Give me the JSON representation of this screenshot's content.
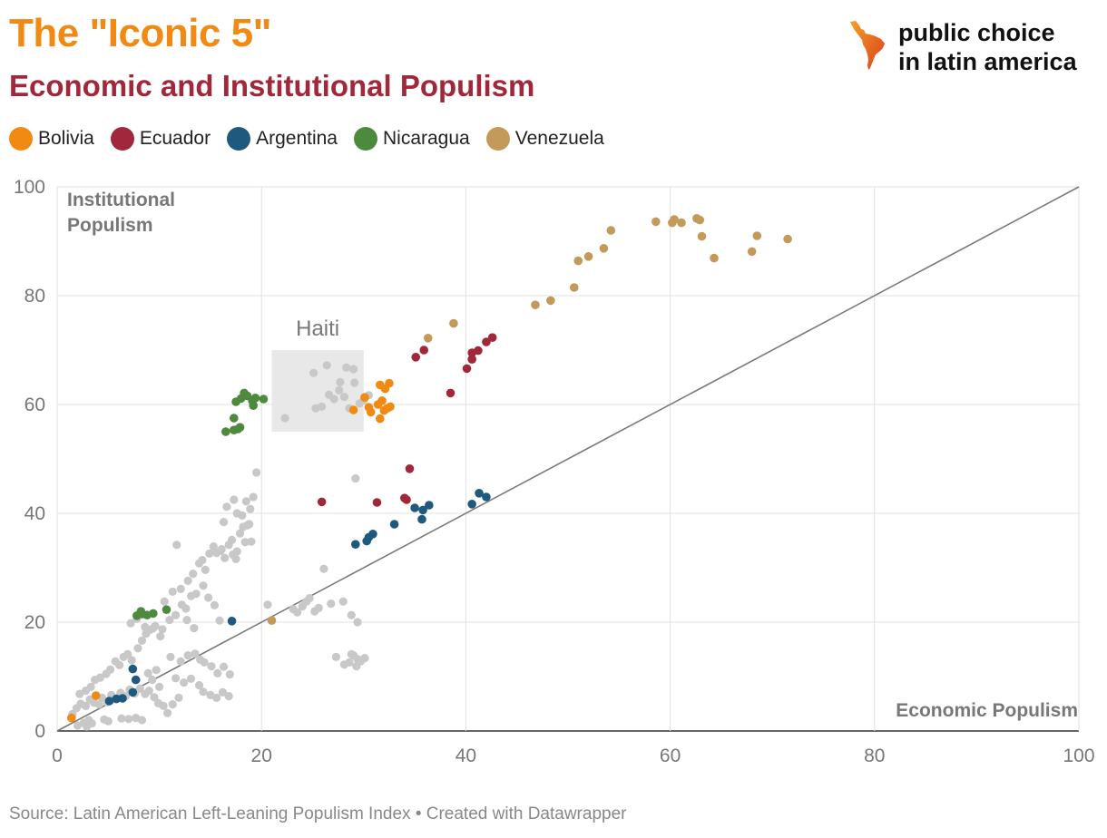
{
  "header": {
    "title": "The \"Iconic 5\"",
    "subtitle": "Economic and Institutional Populism"
  },
  "logo": {
    "line1": "public choice",
    "line2": "in latin america"
  },
  "legend": [
    {
      "label": "Bolivia",
      "color": "#f08a12"
    },
    {
      "label": "Ecuador",
      "color": "#a0283a"
    },
    {
      "label": "Argentina",
      "color": "#1f5a7e"
    },
    {
      "label": "Nicaragua",
      "color": "#4e8a3e"
    },
    {
      "label": "Venezuela",
      "color": "#c49a5a"
    }
  ],
  "footer": {
    "source": "Source: Latin American Left-Leaning Populism Index • Created with Datawrapper"
  },
  "chart_data": {
    "type": "scatter",
    "xlabel": "Economic Populism",
    "ylabel": "Institutional Populism",
    "ylabel_line1": "Institutional",
    "ylabel_line2": "Populism",
    "xlim": [
      0,
      100
    ],
    "ylim": [
      0,
      100
    ],
    "x_ticks": [
      0,
      20,
      40,
      60,
      80,
      100
    ],
    "y_ticks": [
      0,
      20,
      40,
      60,
      80,
      100
    ],
    "diagonal": [
      [
        0,
        0
      ],
      [
        100,
        100
      ]
    ],
    "highlight_box": {
      "label": "Haiti",
      "x0": 21,
      "x1": 30,
      "y0": 55,
      "y1": 70
    },
    "other_color": "#c8c8c8",
    "series": [
      {
        "name": "Bolivia",
        "color": "#f08a12",
        "points": [
          [
            1.4,
            2.4
          ],
          [
            3.8,
            6.5
          ],
          [
            30.1,
            61.3
          ],
          [
            30.5,
            59.5
          ],
          [
            29.0,
            59.0
          ],
          [
            30.7,
            58.6
          ],
          [
            31.6,
            63.6
          ],
          [
            32.1,
            62.9
          ],
          [
            32.5,
            63.9
          ],
          [
            31.8,
            60.7
          ],
          [
            32.3,
            59.3
          ],
          [
            31.6,
            57.4
          ],
          [
            32.6,
            59.6
          ],
          [
            32.0,
            58.9
          ],
          [
            31.4,
            60.0
          ]
        ]
      },
      {
        "name": "Ecuador",
        "color": "#a0283a",
        "points": [
          [
            25.9,
            42.1
          ],
          [
            31.3,
            42.0
          ],
          [
            34.2,
            42.5
          ],
          [
            34.5,
            48.2
          ],
          [
            35.1,
            68.7
          ],
          [
            35.9,
            70.0
          ],
          [
            38.5,
            62.1
          ],
          [
            40.1,
            66.6
          ],
          [
            40.6,
            68.3
          ],
          [
            40.6,
            69.5
          ],
          [
            41.2,
            69.9
          ],
          [
            42.0,
            71.5
          ],
          [
            42.6,
            72.3
          ],
          [
            34.0,
            42.8
          ]
        ]
      },
      {
        "name": "Argentina",
        "color": "#1f5a7e",
        "points": [
          [
            5.1,
            5.5
          ],
          [
            5.8,
            5.9
          ],
          [
            6.4,
            6.0
          ],
          [
            7.4,
            7.1
          ],
          [
            7.4,
            11.4
          ],
          [
            7.7,
            9.4
          ],
          [
            17.1,
            20.2
          ],
          [
            29.2,
            34.3
          ],
          [
            30.3,
            34.9
          ],
          [
            30.5,
            35.6
          ],
          [
            30.9,
            36.2
          ],
          [
            33.0,
            38.0
          ],
          [
            35.0,
            41.0
          ],
          [
            35.8,
            40.6
          ],
          [
            35.7,
            38.9
          ],
          [
            36.4,
            41.5
          ],
          [
            40.6,
            41.7
          ],
          [
            41.3,
            43.7
          ],
          [
            42.0,
            43.0
          ]
        ]
      },
      {
        "name": "Nicaragua",
        "color": "#4e8a3e",
        "points": [
          [
            7.8,
            21.2
          ],
          [
            8.2,
            22.0
          ],
          [
            8.3,
            21.5
          ],
          [
            8.8,
            21.3
          ],
          [
            9.4,
            21.6
          ],
          [
            10.7,
            22.3
          ],
          [
            16.5,
            55.0
          ],
          [
            17.3,
            55.3
          ],
          [
            17.7,
            55.5
          ],
          [
            17.9,
            55.8
          ],
          [
            17.3,
            57.5
          ],
          [
            17.5,
            60.5
          ],
          [
            18.0,
            61.1
          ],
          [
            18.3,
            62.1
          ],
          [
            18.6,
            61.6
          ],
          [
            19.1,
            60.7
          ],
          [
            19.2,
            59.8
          ],
          [
            19.4,
            61.2
          ],
          [
            20.2,
            61.0
          ]
        ]
      },
      {
        "name": "Venezuela",
        "color": "#c49a5a",
        "points": [
          [
            21.0,
            20.3
          ],
          [
            36.3,
            72.2
          ],
          [
            38.8,
            74.9
          ],
          [
            46.8,
            78.3
          ],
          [
            48.3,
            79.1
          ],
          [
            50.6,
            81.5
          ],
          [
            51.0,
            86.4
          ],
          [
            52.0,
            87.2
          ],
          [
            53.5,
            88.7
          ],
          [
            54.2,
            92.0
          ],
          [
            58.6,
            93.6
          ],
          [
            60.2,
            93.4
          ],
          [
            60.4,
            94.0
          ],
          [
            61.1,
            93.4
          ],
          [
            62.6,
            94.2
          ],
          [
            62.9,
            93.9
          ],
          [
            63.1,
            90.9
          ],
          [
            64.3,
            86.9
          ],
          [
            68.0,
            88.1
          ],
          [
            68.5,
            91.0
          ],
          [
            71.5,
            90.4
          ]
        ]
      }
    ],
    "others": [
      [
        2.0,
        1.0
      ],
      [
        2.6,
        1.5
      ],
      [
        2.9,
        0.8
      ],
      [
        3.1,
        2.0
      ],
      [
        3.4,
        1.4
      ],
      [
        4.6,
        2.1
      ],
      [
        5.0,
        1.8
      ],
      [
        6.3,
        2.3
      ],
      [
        7.0,
        2.2
      ],
      [
        7.7,
        2.4
      ],
      [
        8.3,
        2.0
      ],
      [
        1.5,
        3.1
      ],
      [
        1.9,
        4.2
      ],
      [
        2.3,
        5.0
      ],
      [
        2.8,
        4.6
      ],
      [
        3.2,
        5.8
      ],
      [
        3.6,
        5.2
      ],
      [
        4.1,
        4.9
      ],
      [
        4.4,
        6.1
      ],
      [
        4.9,
        5.3
      ],
      [
        5.3,
        6.6
      ],
      [
        5.8,
        5.9
      ],
      [
        6.2,
        7.0
      ],
      [
        6.7,
        6.4
      ],
      [
        7.1,
        7.6
      ],
      [
        7.6,
        6.9
      ],
      [
        8.1,
        7.8
      ],
      [
        8.6,
        6.8
      ],
      [
        9.0,
        7.4
      ],
      [
        9.5,
        6.2
      ],
      [
        9.9,
        5.1
      ],
      [
        10.4,
        4.6
      ],
      [
        10.8,
        3.3
      ],
      [
        11.3,
        4.9
      ],
      [
        11.9,
        6.1
      ],
      [
        2.2,
        6.8
      ],
      [
        2.8,
        7.4
      ],
      [
        3.3,
        8.1
      ],
      [
        3.7,
        9.4
      ],
      [
        4.2,
        9.8
      ],
      [
        4.8,
        10.5
      ],
      [
        5.2,
        11.3
      ],
      [
        5.7,
        12.8
      ],
      [
        6.1,
        12.1
      ],
      [
        6.5,
        13.6
      ],
      [
        6.9,
        14.1
      ],
      [
        7.3,
        13.0
      ],
      [
        7.9,
        15.2
      ],
      [
        8.3,
        16.6
      ],
      [
        8.7,
        17.9
      ],
      [
        9.1,
        18.6
      ],
      [
        9.6,
        19.3
      ],
      [
        10.3,
        18.7
      ],
      [
        11.0,
        20.4
      ],
      [
        11.6,
        21.3
      ],
      [
        12.2,
        23.2
      ],
      [
        12.6,
        22.5
      ],
      [
        13.1,
        24.8
      ],
      [
        13.6,
        25.2
      ],
      [
        7.2,
        19.8
      ],
      [
        7.8,
        20.6
      ],
      [
        8.6,
        19.1
      ],
      [
        9.4,
        18.9
      ],
      [
        10.1,
        17.4
      ],
      [
        10.5,
        23.8
      ],
      [
        11.3,
        25.6
      ],
      [
        12.1,
        26.1
      ],
      [
        12.8,
        27.6
      ],
      [
        13.3,
        28.9
      ],
      [
        13.9,
        30.8
      ],
      [
        14.2,
        31.4
      ],
      [
        14.5,
        29.6
      ],
      [
        14.9,
        32.6
      ],
      [
        15.3,
        33.9
      ],
      [
        15.6,
        32.7
      ],
      [
        16.0,
        33.1
      ],
      [
        16.4,
        31.8
      ],
      [
        16.8,
        34.2
      ],
      [
        17.2,
        32.4
      ],
      [
        17.6,
        33.0
      ],
      [
        17.9,
        36.3
      ],
      [
        18.2,
        37.5
      ],
      [
        18.6,
        37.8
      ],
      [
        18.9,
        40.8
      ],
      [
        19.2,
        43.0
      ],
      [
        19.5,
        47.5
      ],
      [
        11.7,
        34.2
      ],
      [
        14.3,
        26.7
      ],
      [
        14.8,
        24.5
      ],
      [
        15.4,
        23.1
      ],
      [
        15.9,
        20.3
      ],
      [
        13.4,
        18.9
      ],
      [
        12.7,
        20.4
      ],
      [
        11.1,
        13.6
      ],
      [
        12.1,
        12.8
      ],
      [
        12.8,
        13.9
      ],
      [
        13.5,
        14.2
      ],
      [
        14.0,
        13.1
      ],
      [
        14.4,
        12.6
      ],
      [
        15.1,
        11.9
      ],
      [
        15.7,
        10.6
      ],
      [
        16.3,
        11.8
      ],
      [
        16.9,
        10.4
      ],
      [
        11.6,
        9.7
      ],
      [
        12.4,
        8.9
      ],
      [
        13.1,
        9.6
      ],
      [
        13.9,
        8.4
      ],
      [
        14.3,
        7.2
      ],
      [
        15.0,
        6.6
      ],
      [
        15.6,
        6.1
      ],
      [
        16.2,
        7.1
      ],
      [
        16.8,
        6.4
      ],
      [
        10.0,
        8.1
      ],
      [
        9.3,
        9.4
      ],
      [
        8.9,
        10.6
      ],
      [
        9.7,
        11.2
      ],
      [
        17.3,
        42.5
      ],
      [
        18.5,
        42.2
      ],
      [
        16.6,
        41.2
      ],
      [
        17.6,
        40.0
      ],
      [
        18.1,
        39.6
      ],
      [
        18.8,
        38.0
      ],
      [
        16.3,
        38.4
      ],
      [
        17.1,
        35.1
      ],
      [
        18.4,
        34.7
      ],
      [
        19.0,
        34.8
      ],
      [
        16.1,
        33.4
      ],
      [
        17.5,
        31.6
      ],
      [
        20.6,
        23.2
      ],
      [
        23.1,
        22.4
      ],
      [
        23.5,
        21.8
      ],
      [
        24.0,
        22.9
      ],
      [
        24.4,
        23.8
      ],
      [
        24.7,
        24.4
      ],
      [
        25.2,
        22.0
      ],
      [
        25.6,
        22.6
      ],
      [
        26.1,
        29.8
      ],
      [
        26.8,
        23.4
      ],
      [
        28.0,
        23.8
      ],
      [
        28.8,
        21.3
      ],
      [
        29.4,
        20.0
      ],
      [
        27.3,
        13.6
      ],
      [
        28.1,
        12.2
      ],
      [
        28.6,
        12.6
      ],
      [
        29.0,
        13.9
      ],
      [
        29.3,
        11.9
      ],
      [
        29.7,
        12.8
      ],
      [
        30.1,
        13.4
      ],
      [
        28.8,
        14.1
      ],
      [
        29.4,
        13.2
      ],
      [
        29.2,
        46.4
      ],
      [
        22.3,
        57.5
      ],
      [
        25.3,
        59.3
      ],
      [
        25.9,
        59.6
      ],
      [
        26.6,
        61.8
      ],
      [
        27.1,
        61.0
      ],
      [
        27.6,
        62.6
      ],
      [
        28.1,
        61.4
      ],
      [
        28.6,
        59.3
      ],
      [
        29.1,
        64.0
      ],
      [
        27.7,
        64.1
      ],
      [
        28.3,
        66.8
      ],
      [
        29.0,
        66.5
      ],
      [
        25.1,
        65.8
      ],
      [
        26.4,
        67.2
      ],
      [
        29.6,
        60.2
      ],
      [
        30.0,
        60.8
      ],
      [
        30.5,
        61.7
      ]
    ]
  }
}
